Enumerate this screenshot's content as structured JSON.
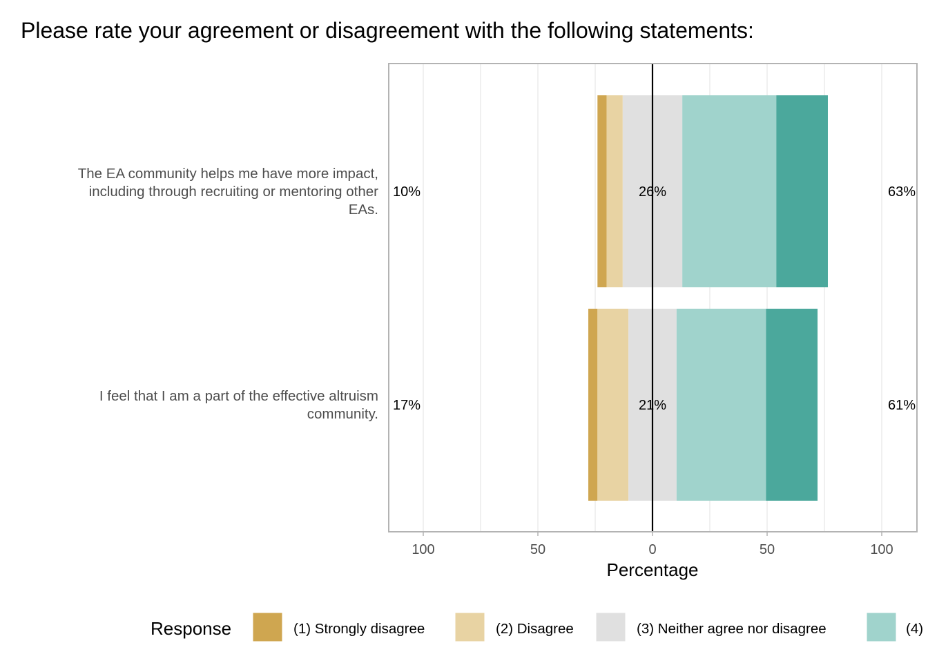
{
  "chart_data": {
    "type": "bar",
    "orientation": "horizontal",
    "stacked": "diverging",
    "title": "Please rate your agreement or disagreement with the following statements:",
    "xlabel": "Percentage",
    "ylabel": "",
    "xlim": [
      -100,
      100
    ],
    "xticks": [
      {
        "value": -100,
        "label": "100"
      },
      {
        "value": -50,
        "label": "50"
      },
      {
        "value": 0,
        "label": "0"
      },
      {
        "value": 50,
        "label": "50"
      },
      {
        "value": 100,
        "label": "100"
      }
    ],
    "grid": true,
    "legend": {
      "title": "Response",
      "placement": "bottom",
      "entries": [
        {
          "label": "(1) Strongly disagree",
          "color": "#CFA650"
        },
        {
          "label": "(2) Disagree",
          "color": "#E8D3A3"
        },
        {
          "label": "(3) Neither agree nor disagree",
          "color": "#E0E0E0"
        },
        {
          "label": "(4)",
          "color": "#A0D3CC"
        }
      ]
    },
    "categories": [
      {
        "lines": [
          "The EA community helps me have more impact,",
          "including through recruiting or mentoring other",
          "EAs."
        ],
        "left_label": "10%",
        "center_label": "26%",
        "right_label": "63%"
      },
      {
        "lines": [
          "I feel that I am a part of the effective altruism",
          "community."
        ],
        "left_label": "17%",
        "center_label": "21%",
        "right_label": "61%"
      }
    ],
    "series": [
      {
        "name": "(1) Strongly disagree",
        "color": "#CFA650",
        "values": [
          4,
          4
        ]
      },
      {
        "name": "(2) Disagree",
        "color": "#E8D3A3",
        "values": [
          7,
          13.5
        ]
      },
      {
        "name": "(3) Neither agree nor disagree",
        "color": "#E0E0E0",
        "values": [
          26,
          21
        ]
      },
      {
        "name": "",
        "color": "#A0D3CC",
        "values": [
          41,
          39
        ]
      },
      {
        "name": "",
        "color": "#4BA89C",
        "values": [
          22.5,
          22.5
        ]
      }
    ]
  }
}
